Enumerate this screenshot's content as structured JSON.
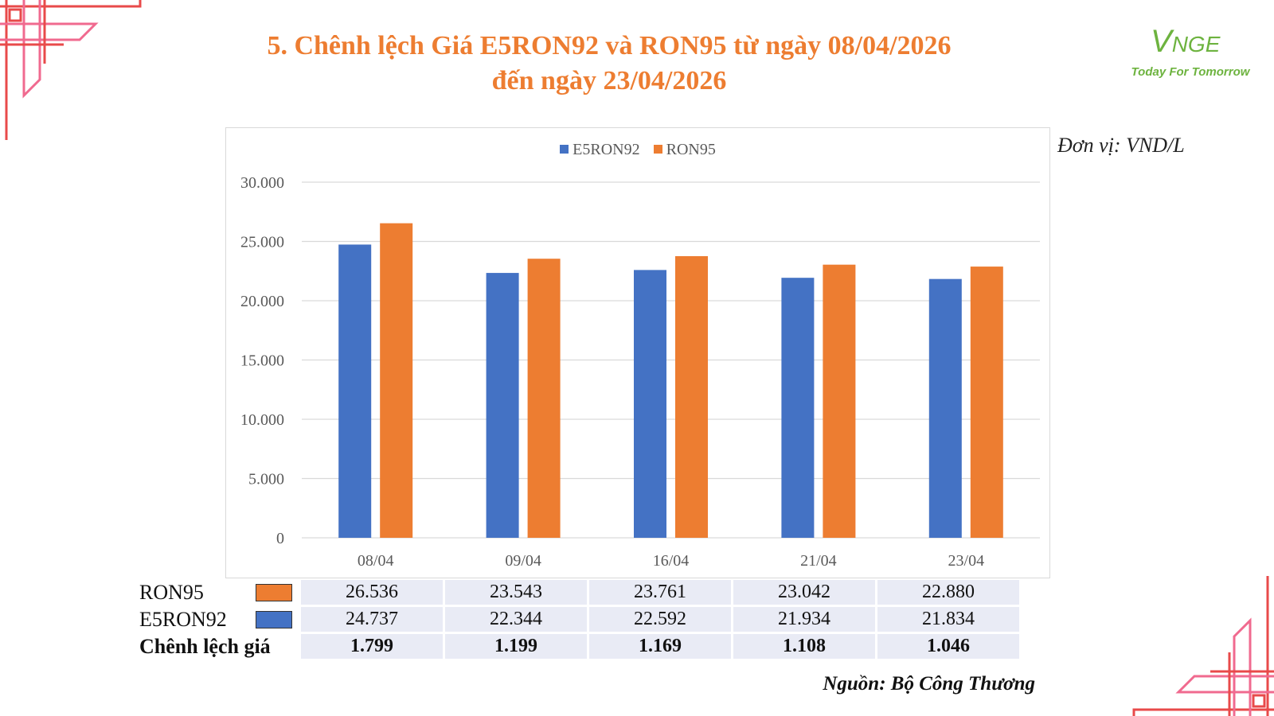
{
  "title": {
    "line1": "5. Chênh lệch Giá E5RON92 và RON95 từ ngày 08/04/2026",
    "line2": "đến ngày 23/04/2026"
  },
  "logo": {
    "mark_big": "V",
    "mark_small": "NGE",
    "tagline": "Today For Tomorrow"
  },
  "unit": "Đơn vị: VND/L",
  "source": "Nguồn: Bộ Công Thương",
  "colors": {
    "e5ron92": "#4472C4",
    "ron95": "#ED7D31",
    "title": "#ED7D31",
    "logo": "#6DB33F",
    "table_cell": "#E9EBF5",
    "corner_pink": "#F06A8F",
    "corner_red": "#E84A4A"
  },
  "chart_data": {
    "type": "bar",
    "categories": [
      "08/04",
      "09/04",
      "16/04",
      "21/04",
      "23/04"
    ],
    "series": [
      {
        "name": "E5RON92",
        "values": [
          24737,
          22344,
          22592,
          21934,
          21834
        ]
      },
      {
        "name": "RON95",
        "values": [
          26536,
          23543,
          23761,
          23042,
          22880
        ]
      }
    ],
    "ylim": [
      0,
      30000
    ],
    "yticks": [
      0,
      5000,
      10000,
      15000,
      20000,
      25000,
      30000
    ],
    "ytick_labels": [
      "0",
      "5.000",
      "10.000",
      "15.000",
      "20.000",
      "25.000",
      "30.000"
    ],
    "grid": true,
    "legend_position": "top-center"
  },
  "table": {
    "rows": [
      {
        "label": "RON95",
        "swatch": "ron95",
        "values": [
          "26.536",
          "23.543",
          "23.761",
          "23.042",
          "22.880"
        ]
      },
      {
        "label": "E5RON92",
        "swatch": "e5ron92",
        "values": [
          "24.737",
          "22.344",
          "22.592",
          "21.934",
          "21.834"
        ]
      },
      {
        "label": "Chênh lệch giá",
        "values": [
          "1.799",
          "1.199",
          "1.169",
          "1.108",
          "1.046"
        ]
      }
    ]
  }
}
